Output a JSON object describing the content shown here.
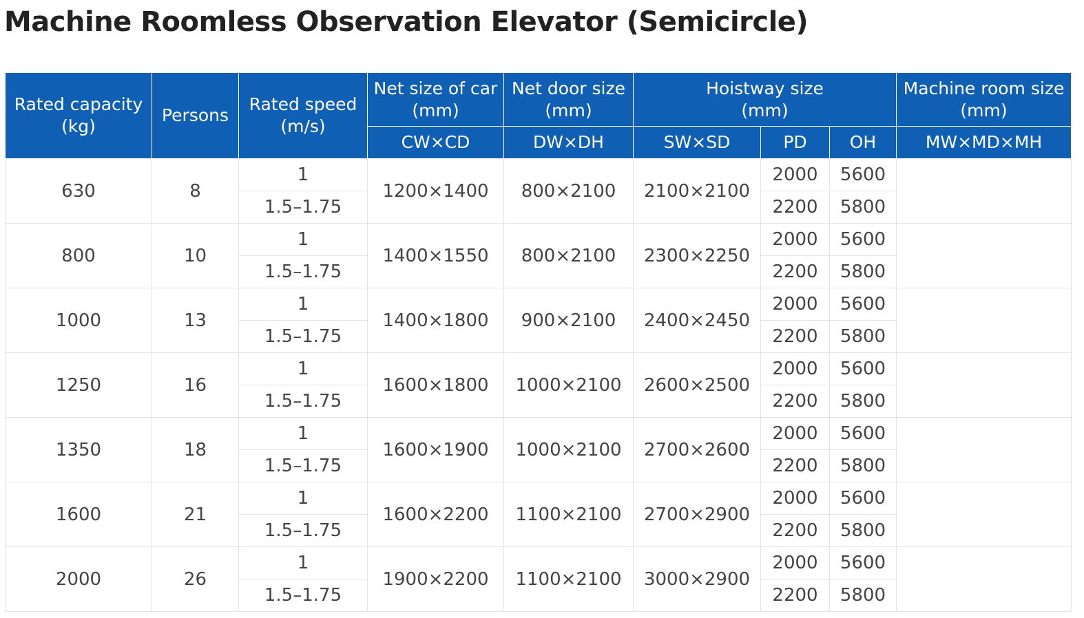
{
  "page_title": "Machine Roomless Observation Elevator (Semicircle)",
  "header": {
    "rated_capacity": [
      "Rated capacity",
      "(kg)"
    ],
    "persons": "Persons",
    "rated_speed": [
      "Rated speed",
      "(m/s)"
    ],
    "net_size_car": [
      "Net size of car",
      "(mm)"
    ],
    "net_door_size": [
      "Net door size",
      "(mm)"
    ],
    "hoistway_size": [
      "Hoistway size",
      "(mm)"
    ],
    "machine_room_size": [
      "Machine room size",
      "(mm)"
    ],
    "sub": {
      "cwcd": "CW×CD",
      "dwdh": "DW×DH",
      "swsd": "SW×SD",
      "pd": "PD",
      "oh": "OH",
      "mwmdmh": "MW×MD×MH"
    }
  },
  "rows": [
    {
      "capacity": "630",
      "persons": "8",
      "speeds": [
        "1",
        "1.5–1.75"
      ],
      "car": "1200×1400",
      "door": "800×2100",
      "hoistway": "2100×2100",
      "pd": [
        "2000",
        "2200"
      ],
      "oh": [
        "5600",
        "5800"
      ],
      "machine_room": ""
    },
    {
      "capacity": "800",
      "persons": "10",
      "speeds": [
        "1",
        "1.5–1.75"
      ],
      "car": "1400×1550",
      "door": "800×2100",
      "hoistway": "2300×2250",
      "pd": [
        "2000",
        "2200"
      ],
      "oh": [
        "5600",
        "5800"
      ],
      "machine_room": ""
    },
    {
      "capacity": "1000",
      "persons": "13",
      "speeds": [
        "1",
        "1.5–1.75"
      ],
      "car": "1400×1800",
      "door": "900×2100",
      "hoistway": "2400×2450",
      "pd": [
        "2000",
        "2200"
      ],
      "oh": [
        "5600",
        "5800"
      ],
      "machine_room": ""
    },
    {
      "capacity": "1250",
      "persons": "16",
      "speeds": [
        "1",
        "1.5–1.75"
      ],
      "car": "1600×1800",
      "door": "1000×2100",
      "hoistway": "2600×2500",
      "pd": [
        "2000",
        "2200"
      ],
      "oh": [
        "5600",
        "5800"
      ],
      "machine_room": ""
    },
    {
      "capacity": "1350",
      "persons": "18",
      "speeds": [
        "1",
        "1.5–1.75"
      ],
      "car": "1600×1900",
      "door": "1000×2100",
      "hoistway": "2700×2600",
      "pd": [
        "2000",
        "2200"
      ],
      "oh": [
        "5600",
        "5800"
      ],
      "machine_room": ""
    },
    {
      "capacity": "1600",
      "persons": "21",
      "speeds": [
        "1",
        "1.5–1.75"
      ],
      "car": "1600×2200",
      "door": "1100×2100",
      "hoistway": "2700×2900",
      "pd": [
        "2000",
        "2200"
      ],
      "oh": [
        "5600",
        "5800"
      ],
      "machine_room": ""
    },
    {
      "capacity": "2000",
      "persons": "26",
      "speeds": [
        "1",
        "1.5–1.75"
      ],
      "car": "1900×2200",
      "door": "1100×2100",
      "hoistway": "3000×2900",
      "pd": [
        "2000",
        "2200"
      ],
      "oh": [
        "5600",
        "5800"
      ],
      "machine_room": ""
    }
  ]
}
